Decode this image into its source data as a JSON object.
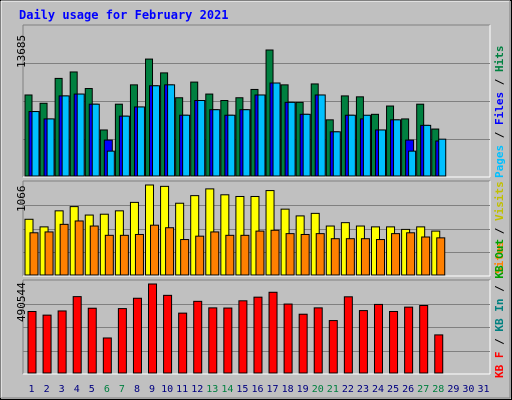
{
  "title": "Daily usage for February 2021",
  "colors": {
    "background": "#c0c0c0",
    "title": "#0000ff",
    "hits": "#008040",
    "files": "#0000ff",
    "pages": "#00c0ff",
    "visits": "#ffff00",
    "sites": "#ff8000",
    "kbin": "#008080",
    "kbout": "#00a000",
    "kbf": "#ff0000",
    "weekend_label": "#008040",
    "weekday_label": "#000080"
  },
  "chart_data": [
    {
      "type": "bar",
      "panel": "hits-files-pages",
      "ymax_label": "13685",
      "legend": [
        "Pages",
        "Files",
        "Hits"
      ],
      "days": [
        1,
        2,
        3,
        4,
        5,
        6,
        7,
        8,
        9,
        10,
        11,
        12,
        13,
        14,
        15,
        16,
        17,
        18,
        19,
        20,
        21,
        22,
        23,
        24,
        25,
        26,
        27,
        28
      ],
      "series": [
        {
          "name": "Hits",
          "values": [
            8800,
            7900,
            10600,
            11300,
            9500,
            5000,
            7800,
            9900,
            12700,
            11200,
            8500,
            10200,
            8900,
            8200,
            8500,
            9400,
            13685,
            9900,
            8000,
            10000,
            6100,
            8700,
            8600,
            6700,
            7600,
            6200,
            7800,
            5100
          ]
        },
        {
          "name": "Files",
          "values": [
            7000,
            6200,
            8700,
            8900,
            7800,
            3900,
            6500,
            7500,
            9800,
            9900,
            6600,
            8200,
            7200,
            6600,
            7200,
            8800,
            10100,
            8000,
            6700,
            8800,
            4800,
            6600,
            6200,
            5000,
            6100,
            3900,
            5500,
            3800
          ]
        },
        {
          "name": "Pages",
          "values": [
            7000,
            6200,
            8700,
            8900,
            7800,
            2700,
            6500,
            7500,
            9800,
            9900,
            6600,
            8200,
            7200,
            6600,
            7200,
            8800,
            10100,
            8000,
            6700,
            8800,
            4800,
            6600,
            6600,
            5000,
            6100,
            2700,
            5500,
            4000
          ]
        }
      ]
    },
    {
      "type": "bar",
      "panel": "visits-sites",
      "ymax_label": "1066",
      "legend": [
        "Visits",
        "Sites"
      ],
      "days": [
        1,
        2,
        3,
        4,
        5,
        6,
        7,
        8,
        9,
        10,
        11,
        12,
        13,
        14,
        15,
        16,
        17,
        18,
        19,
        20,
        21,
        22,
        23,
        24,
        25,
        26,
        27,
        28
      ],
      "series": [
        {
          "name": "Visits",
          "values": [
            660,
            570,
            760,
            810,
            710,
            720,
            760,
            860,
            1066,
            1050,
            850,
            940,
            1020,
            950,
            930,
            930,
            1000,
            780,
            700,
            730,
            580,
            620,
            580,
            570,
            570,
            540,
            570,
            520
          ]
        },
        {
          "name": "Sites",
          "values": [
            500,
            510,
            600,
            640,
            580,
            470,
            470,
            480,
            590,
            560,
            420,
            460,
            510,
            470,
            470,
            520,
            530,
            490,
            480,
            490,
            430,
            430,
            430,
            420,
            490,
            500,
            450,
            440
          ]
        }
      ]
    },
    {
      "type": "bar",
      "panel": "kb",
      "ymax_label": "490544",
      "legend": [
        "KB F",
        "KB In",
        "KB Out"
      ],
      "days": [
        1,
        2,
        3,
        4,
        5,
        6,
        7,
        8,
        9,
        10,
        11,
        12,
        13,
        14,
        15,
        16,
        17,
        18,
        19,
        20,
        21,
        22,
        23,
        24,
        25,
        26,
        27,
        28
      ],
      "series": [
        {
          "name": "KB F",
          "values": [
            339000,
            319000,
            342000,
            421000,
            357000,
            193000,
            355000,
            412000,
            490544,
            428000,
            330000,
            395000,
            359000,
            358000,
            398000,
            418000,
            445000,
            380000,
            324000,
            359000,
            289000,
            420000,
            344000,
            378000,
            339000,
            363000,
            372000,
            210000
          ]
        }
      ]
    }
  ],
  "x_labels": [
    "1",
    "2",
    "3",
    "4",
    "5",
    "6",
    "7",
    "8",
    "9",
    "10",
    "11",
    "12",
    "13",
    "14",
    "15",
    "16",
    "17",
    "18",
    "19",
    "20",
    "21",
    "22",
    "23",
    "24",
    "25",
    "26",
    "27",
    "28",
    "29",
    "30",
    "31"
  ],
  "weekend_days": [
    6,
    7,
    13,
    14,
    20,
    21,
    27,
    28
  ]
}
